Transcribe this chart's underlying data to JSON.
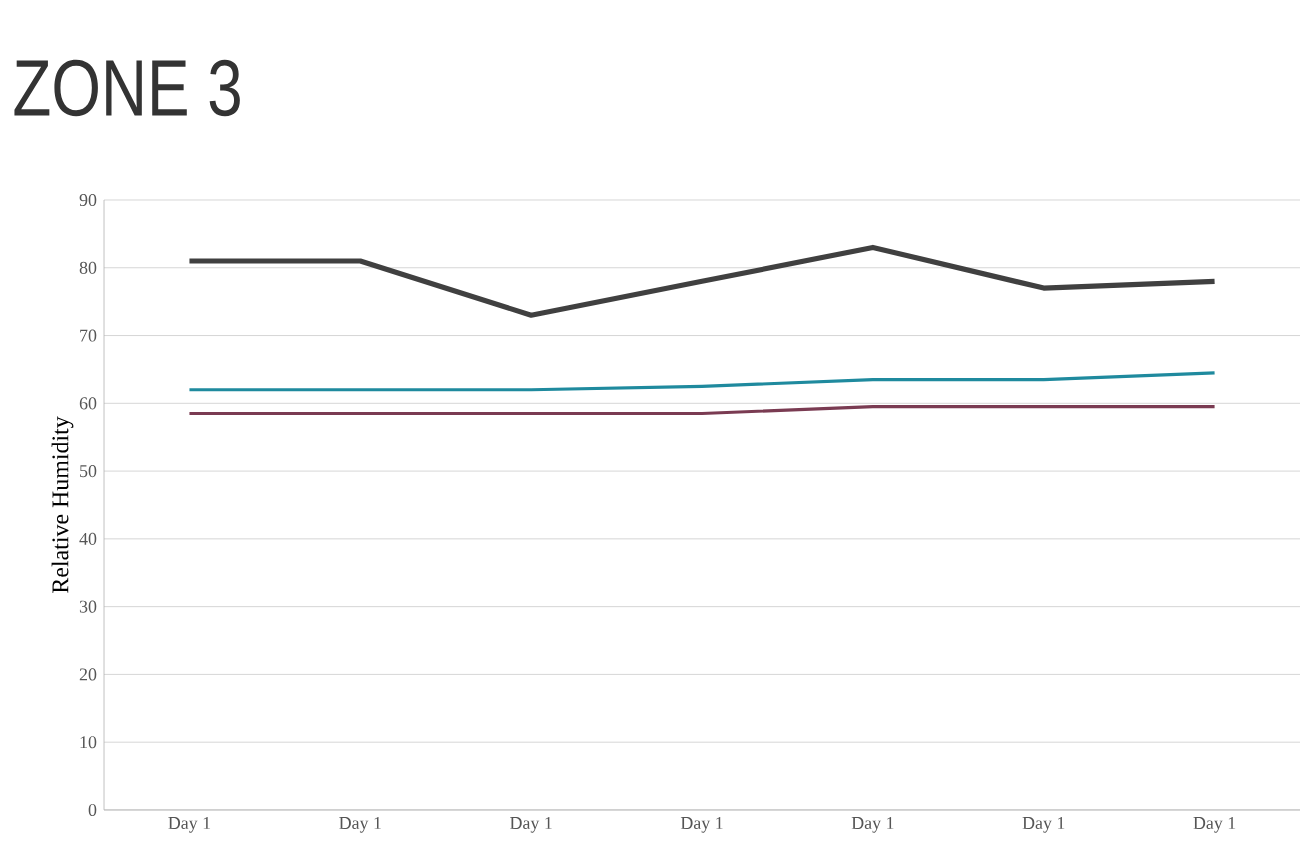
{
  "chart_data": {
    "type": "line",
    "title": "ZONE 3",
    "ylabel": "Relative Humidity",
    "categories": [
      "Day 1",
      "Day 1",
      "Day 1",
      "Day 1",
      "Day 1",
      "Day 1",
      "Day 1"
    ],
    "series": [
      {
        "color": "#404040",
        "values": [
          81,
          81,
          73,
          78,
          83,
          77,
          78
        ]
      },
      {
        "color": "#1f8a9e",
        "values": [
          62,
          62,
          62,
          62.5,
          63.5,
          63.5,
          64.5
        ]
      },
      {
        "color": "#7a3b52",
        "values": [
          58.5,
          58.5,
          58.5,
          58.5,
          59.5,
          59.5,
          59.5
        ]
      }
    ],
    "ylim": [
      0,
      90
    ],
    "yticks": [
      0,
      10,
      20,
      30,
      40,
      50,
      60,
      70,
      80,
      90
    ],
    "grid": "y",
    "marker": "none",
    "line_style": "solid"
  }
}
